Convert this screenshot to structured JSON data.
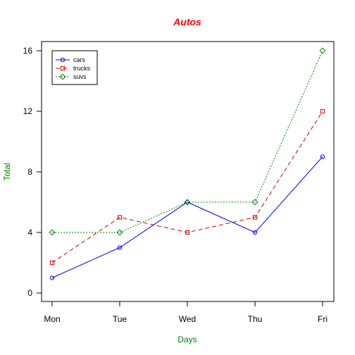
{
  "chart_data": {
    "type": "line",
    "title": "Autos",
    "xlabel": "Days",
    "ylabel": "Total",
    "categories": [
      "Mon",
      "Tue",
      "Wed",
      "Thu",
      "Fri"
    ],
    "series": [
      {
        "name": "cars",
        "values": [
          1,
          3,
          6,
          4,
          9
        ],
        "color": "#0000ff",
        "marker": "circle",
        "line": "solid"
      },
      {
        "name": "trucks",
        "values": [
          2,
          5,
          4,
          5,
          12
        ],
        "color": "#cc0000",
        "marker": "square",
        "line": "dashed"
      },
      {
        "name": "suvs",
        "values": [
          4,
          4,
          6,
          6,
          16
        ],
        "color": "#008000",
        "marker": "diamond",
        "line": "dotted"
      }
    ],
    "yticks": [
      0,
      4,
      8,
      12,
      16
    ],
    "ylim": [
      0,
      16
    ],
    "grid": false,
    "legend_position": "top-left",
    "title_color": "#ff0000",
    "axis_label_color": "#008000"
  }
}
